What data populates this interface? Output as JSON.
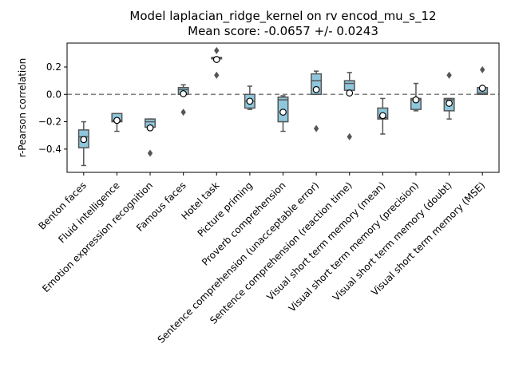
{
  "chart_data": {
    "type": "box",
    "title": "Model laplacian_ridge_kernel on rv encod_mu_s_12",
    "subtitle": "Mean score: -0.0657 +/- 0.0243",
    "xlabel": "",
    "ylabel": "r-Pearson correlation",
    "ylim": [
      -0.57,
      0.375
    ],
    "yticks": [
      -0.4,
      -0.2,
      0.0,
      0.2
    ],
    "ytick_labels": [
      "−0.4",
      "−0.2",
      "0.0",
      "0.2"
    ],
    "reference_line": 0.0,
    "grid": false,
    "categories": [
      "Benton faces",
      "Fluid intelligence",
      "Emotion expression recognition",
      "Famous faces",
      "Hotel task",
      "Picture priming",
      "Proverb comprehension",
      "Sentence comprehension (unacceptable error)",
      "Sentence comprehension (reaction time)",
      "Visual short term memory (mean)",
      "Visual short term memory (precision)",
      "Visual short term memory (doubt)",
      "Visual short term memory (MSE)"
    ],
    "boxes": [
      {
        "whisker_low": -0.52,
        "q1": -0.39,
        "median": -0.31,
        "q3": -0.26,
        "whisker_high": -0.2,
        "mean": -0.33,
        "outliers": []
      },
      {
        "whisker_low": -0.27,
        "q1": -0.2,
        "median": -0.19,
        "q3": -0.14,
        "whisker_high": -0.14,
        "mean": -0.19,
        "outliers": []
      },
      {
        "whisker_low": -0.24,
        "q1": -0.24,
        "median": -0.2,
        "q3": -0.18,
        "whisker_high": -0.18,
        "mean": -0.245,
        "outliers": [
          -0.43
        ]
      },
      {
        "whisker_low": 0.0,
        "q1": 0.0,
        "median": 0.035,
        "q3": 0.05,
        "whisker_high": 0.07,
        "mean": 0.005,
        "outliers": [
          -0.13
        ]
      },
      {
        "whisker_low": 0.26,
        "q1": 0.26,
        "median": 0.265,
        "q3": 0.27,
        "whisker_high": 0.27,
        "mean": 0.255,
        "outliers": [
          0.32,
          0.14
        ]
      },
      {
        "whisker_low": -0.11,
        "q1": -0.1,
        "median": -0.05,
        "q3": 0.0,
        "whisker_high": 0.06,
        "mean": -0.05,
        "outliers": []
      },
      {
        "whisker_low": -0.27,
        "q1": -0.2,
        "median": -0.04,
        "q3": -0.02,
        "whisker_high": -0.01,
        "mean": -0.13,
        "outliers": []
      },
      {
        "whisker_low": 0.0,
        "q1": 0.0,
        "median": 0.1,
        "q3": 0.15,
        "whisker_high": 0.17,
        "mean": 0.035,
        "outliers": [
          -0.25
        ]
      },
      {
        "whisker_low": 0.03,
        "q1": 0.03,
        "median": 0.08,
        "q3": 0.1,
        "whisker_high": 0.16,
        "mean": 0.01,
        "outliers": [
          -0.31
        ]
      },
      {
        "whisker_low": -0.29,
        "q1": -0.18,
        "median": -0.17,
        "q3": -0.1,
        "whisker_high": -0.03,
        "mean": -0.155,
        "outliers": []
      },
      {
        "whisker_low": -0.12,
        "q1": -0.11,
        "median": -0.04,
        "q3": -0.03,
        "whisker_high": 0.08,
        "mean": -0.04,
        "outliers": []
      },
      {
        "whisker_low": -0.18,
        "q1": -0.12,
        "median": -0.04,
        "q3": -0.03,
        "whisker_high": -0.03,
        "mean": -0.065,
        "outliers": [
          0.14
        ]
      },
      {
        "whisker_low": 0.0,
        "q1": 0.0,
        "median": 0.01,
        "q3": 0.05,
        "whisker_high": 0.05,
        "mean": 0.045,
        "outliers": [
          0.18
        ]
      }
    ],
    "colors": {
      "box_fill": "#8ec7dc",
      "box_edge": "#555555",
      "mean_marker_fill": "#ffffff",
      "mean_marker_edge": "#000000",
      "outlier": "#555555",
      "reference_line": "#808080"
    }
  }
}
